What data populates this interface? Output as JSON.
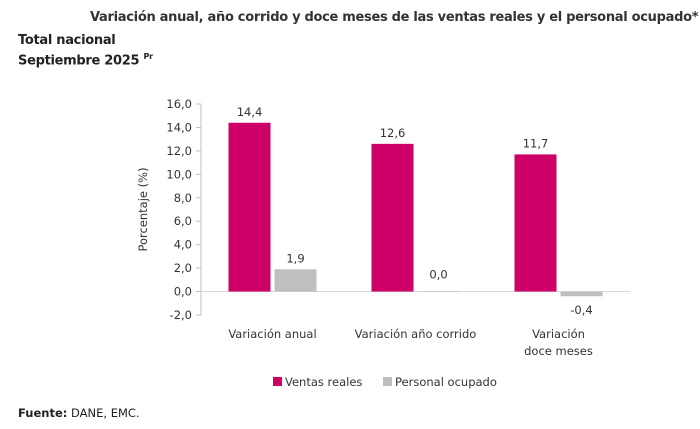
{
  "header": {
    "title": "Variación anual, año corrido y doce meses de las ventas reales y el personal ocupado*",
    "subtitle1": "Total nacional",
    "subtitle2": "Septiembre 2025",
    "subtitle2_sup": "Pr"
  },
  "source": {
    "label": "Fuente:",
    "text": "DANE, EMC."
  },
  "chart_data": {
    "type": "bar",
    "title": "Variación anual, año corrido y doce meses de las ventas reales y el personal ocupado*",
    "ylabel": "Porcentaje (%)",
    "xlabel": "",
    "ylim": [
      -2.0,
      16.0
    ],
    "yticks": [
      "16,0",
      "14,0",
      "12,0",
      "10,0",
      "8,0",
      "6,0",
      "4,0",
      "2,0",
      "0,0",
      "-2,0"
    ],
    "categories": [
      [
        "Variación anual"
      ],
      [
        "Variación año corrido"
      ],
      [
        "Variación",
        "doce meses"
      ]
    ],
    "series": [
      {
        "name": "Ventas reales",
        "color": "#CC0066",
        "values": [
          14.4,
          12.6,
          11.7
        ],
        "labels": [
          "14,4",
          "12,6",
          "11,7"
        ]
      },
      {
        "name": "Personal ocupado",
        "color": "#BFBFBF",
        "values": [
          1.9,
          0.0,
          -0.4
        ],
        "labels": [
          "1,9",
          "0,0",
          "-0,4"
        ]
      }
    ],
    "grid": false,
    "legend": "bottom"
  }
}
